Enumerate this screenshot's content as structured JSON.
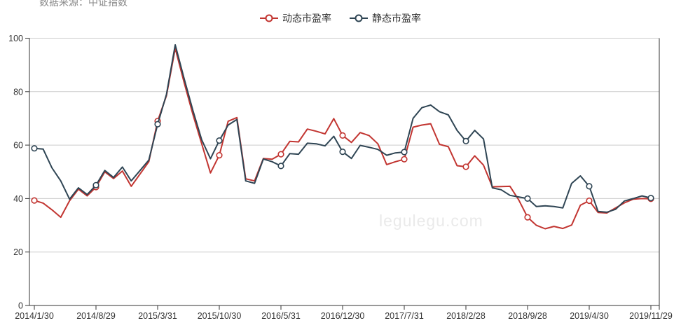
{
  "header": {
    "data_source_note": "数据来源：中证指数"
  },
  "legend": {
    "items": [
      {
        "label": "动态市盈率",
        "color": "#c23531"
      },
      {
        "label": "静态市盈率",
        "color": "#2f4554"
      }
    ]
  },
  "watermark": "legulegu.com",
  "colors": {
    "dynamic_pe": "#c23531",
    "static_pe": "#2f4554",
    "gridline": "#cccccc",
    "axis": "#333333",
    "tick_label": "#333333",
    "watermark": "#eaeaea",
    "source_note": "#888888"
  },
  "chart_data": {
    "type": "line",
    "title": "数据来源：中证指数",
    "xlabel": "",
    "ylabel": "",
    "ylim": [
      0,
      100
    ],
    "grid": true,
    "legend_position": "top-center",
    "x_count": 71,
    "x_tick_labels": [
      "2014/1/30",
      "2014/8/29",
      "2015/3/31",
      "2015/10/30",
      "2016/5/31",
      "2016/12/30",
      "2017/7/31",
      "2018/2/28",
      "2018/9/28",
      "2019/4/30",
      "2019/11/29"
    ],
    "x_tick_indices": [
      0,
      7,
      14,
      21,
      28,
      35,
      42,
      49,
      56,
      63,
      70
    ],
    "y_tick_labels": [
      "0",
      "20",
      "40",
      "60",
      "80",
      "100"
    ],
    "y_ticks": [
      0,
      20,
      40,
      60,
      80,
      100
    ],
    "marker_indices": [
      0,
      7,
      14,
      21,
      28,
      35,
      42,
      49,
      56,
      63,
      70
    ],
    "series": [
      {
        "name": "动态市盈率",
        "color": "#c23531",
        "values": [
          39.3,
          38.3,
          35.8,
          33.0,
          39.2,
          43.5,
          41.0,
          44.3,
          50.0,
          47.5,
          50.3,
          44.6,
          49.2,
          53.8,
          69.0,
          78.5,
          96.2,
          83.5,
          71.5,
          60.5,
          49.6,
          56.2,
          68.9,
          70.3,
          47.4,
          46.6,
          55.0,
          54.7,
          56.6,
          61.4,
          61.2,
          66.0,
          65.2,
          64.2,
          69.9,
          63.6,
          61.0,
          64.7,
          63.6,
          60.5,
          52.7,
          53.8,
          54.7,
          66.7,
          67.5,
          68.0,
          60.3,
          59.4,
          52.3,
          51.9,
          56.0,
          52.5,
          44.4,
          44.5,
          44.6,
          39.5,
          33.0,
          30.0,
          28.7,
          29.6,
          28.8,
          30.1,
          37.5,
          39.2,
          34.8,
          34.6,
          36.5,
          38.4,
          39.8,
          40.0,
          39.9
        ]
      },
      {
        "name": "静态市盈率",
        "color": "#2f4554",
        "values": [
          58.8,
          58.5,
          51.5,
          46.6,
          39.8,
          44.0,
          41.5,
          45.0,
          50.5,
          47.9,
          51.8,
          46.6,
          50.5,
          54.4,
          67.8,
          79.0,
          97.5,
          85.0,
          73.0,
          62.0,
          54.9,
          61.7,
          67.5,
          69.6,
          46.6,
          45.7,
          54.8,
          53.8,
          52.2,
          56.8,
          56.6,
          60.7,
          60.5,
          59.7,
          63.3,
          57.5,
          55.0,
          59.9,
          59.2,
          58.4,
          56.2,
          57.1,
          57.4,
          70.0,
          74.0,
          75.0,
          72.5,
          71.3,
          65.5,
          61.5,
          65.5,
          62.3,
          44.0,
          43.3,
          41.2,
          40.6,
          40.0,
          37.0,
          37.3,
          37.0,
          36.5,
          45.7,
          48.5,
          44.6,
          35.2,
          34.9,
          36.0,
          39.1,
          40.0,
          41.0,
          40.2
        ]
      }
    ]
  }
}
